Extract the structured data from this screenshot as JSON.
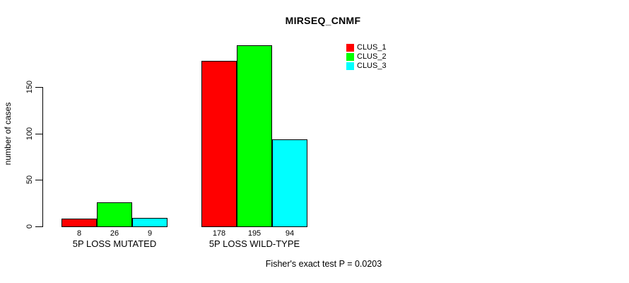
{
  "chart_data": {
    "type": "bar",
    "title": "MIRSEQ_CNMF",
    "ylabel": "number of cases",
    "xlabel": "",
    "ylim": [
      0,
      150
    ],
    "yticks": [
      0,
      50,
      100,
      150
    ],
    "grid": false,
    "categories": [
      "5P LOSS MUTATED",
      "5P LOSS WILD-TYPE"
    ],
    "series": [
      {
        "name": "CLUS_1",
        "color": "#ff0000",
        "values": [
          8,
          178
        ]
      },
      {
        "name": "CLUS_2",
        "color": "#00ff00",
        "values": [
          26,
          195
        ]
      },
      {
        "name": "CLUS_3",
        "color": "#00ffff",
        "values": [
          9,
          94
        ]
      }
    ],
    "bar_value_labels_shown": true,
    "legend_position": "top-right",
    "annotation": "Fisher's exact test P = 0.0203"
  },
  "colors": {
    "background": "#ffffff",
    "axis": "#000000",
    "bar_border": "#000000",
    "text": "#000000"
  }
}
